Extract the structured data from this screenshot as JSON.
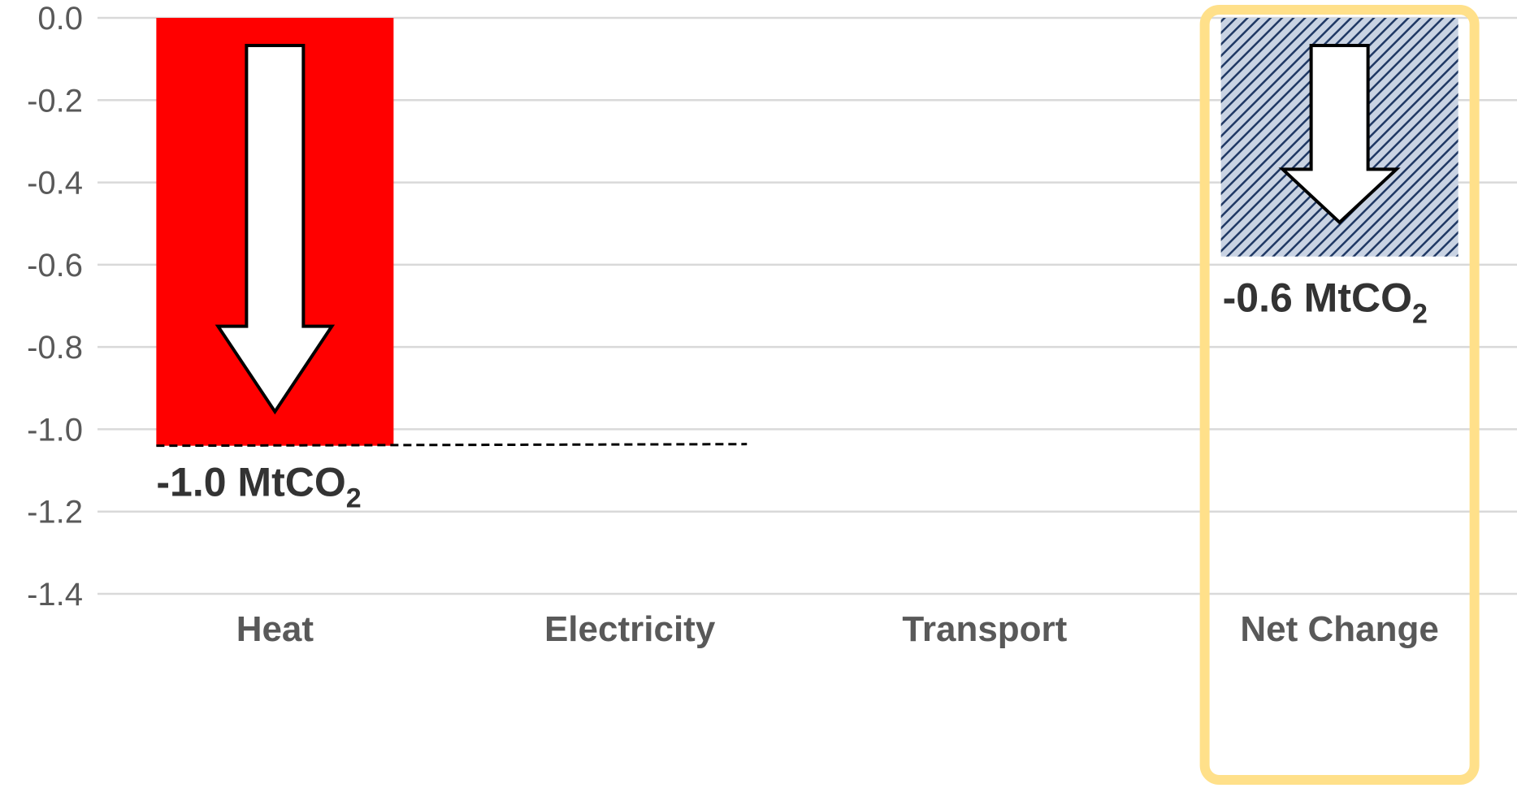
{
  "chart_data": {
    "type": "bar",
    "title": "",
    "xlabel": "",
    "ylabel": "",
    "categories": [
      "Heat",
      "Electricity",
      "Transport",
      "Net Change"
    ],
    "values": [
      -1.04,
      0,
      0,
      -0.58
    ],
    "ylim": [
      -1.4,
      0.0
    ],
    "yticks": [
      "0.0",
      "-0.2",
      "-0.4",
      "-0.6",
      "-0.8",
      "-1.0",
      "-1.2",
      "-1.4"
    ],
    "grid": true,
    "legend": "none",
    "highlight_category": "Net Change",
    "data_labels": [
      {
        "category": "Heat",
        "text": "-1.0 MtCO",
        "subscript": "2"
      },
      {
        "category": "Net Change",
        "text": "-0.6 MtCO",
        "subscript": "2"
      }
    ],
    "colors": {
      "heat_bar": "#ff0000",
      "net_bar": "#1f3864",
      "net_hatch": "#c9d3e3",
      "highlight_box": "#ffe08a",
      "gridline": "#d9d9d9",
      "arrow_fill": "#ffffff",
      "arrow_stroke": "#000000",
      "dashed_line": "#000000",
      "text": "#595959"
    }
  }
}
